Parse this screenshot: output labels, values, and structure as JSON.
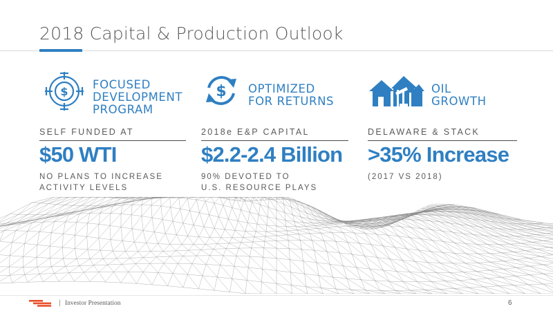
{
  "slide": {
    "title": "2018 Capital & Production Outlook",
    "accent_color": "#2f7fc2"
  },
  "columns": [
    {
      "icon": "target-dollar-icon",
      "heading": [
        "FOCUSED",
        "DEVELOPMENT",
        "PROGRAM"
      ],
      "label": "SELF FUNDED AT",
      "value": "$50 WTI",
      "sub": [
        "NO PLANS TO INCREASE",
        "ACTIVITY LEVELS"
      ]
    },
    {
      "icon": "refresh-dollar-icon",
      "heading": [
        "OPTIMIZED",
        "FOR RETURNS"
      ],
      "label": "2018e E&P CAPITAL",
      "value": "$2.2-2.4 Billion",
      "sub": [
        "90% DEVOTED TO",
        "U.S. RESOURCE PLAYS"
      ]
    },
    {
      "icon": "houses-pumpjack-icon",
      "heading": [
        "OIL",
        "GROWTH"
      ],
      "label": "DELAWARE & STACK",
      "value": ">35% Increase",
      "sub": [
        "(2017 VS 2018)"
      ]
    }
  ],
  "footer": {
    "logo": "company-logo-icon",
    "separator": "|",
    "text": "Investor Presentation",
    "page_number": "6"
  }
}
